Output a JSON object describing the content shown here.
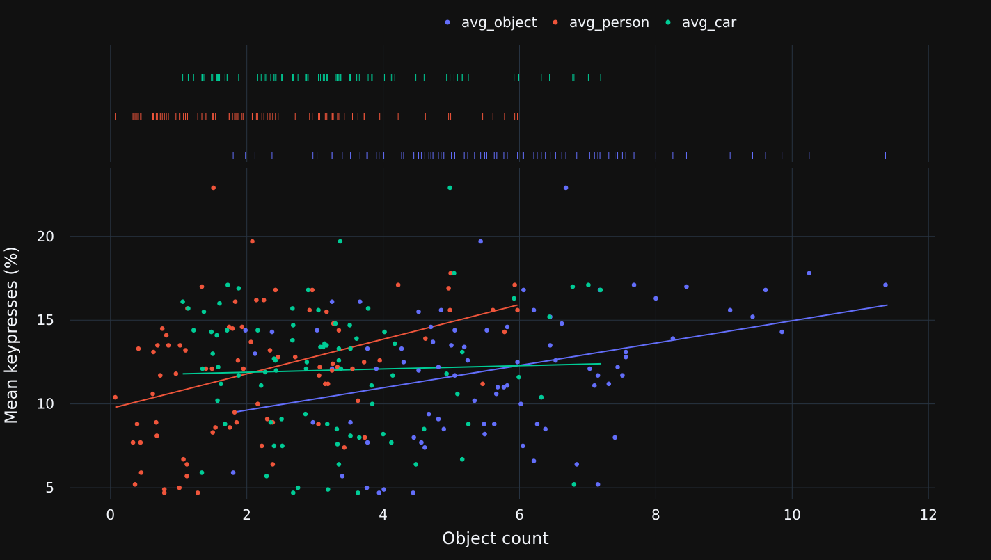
{
  "chart_data": {
    "type": "scatter",
    "xlabel": "Object count",
    "ylabel": "Mean keypresses (%)",
    "xlim": [
      -0.6,
      12.1
    ],
    "ylim": [
      4.3,
      24.1
    ],
    "x_ticks": [
      0,
      2,
      4,
      6,
      8,
      10,
      12
    ],
    "y_ticks": [
      5,
      10,
      15,
      20
    ],
    "grid": true,
    "legend_position": "top-center",
    "marginal": "rug",
    "colors": {
      "background": "#111111",
      "grid": "#283442",
      "text": "#f2f5fa"
    },
    "series": [
      {
        "name": "avg_object",
        "color": "#636efa",
        "trendline": {
          "x": [
            1.8,
            11.4
          ],
          "y": [
            9.5,
            15.9
          ]
        },
        "points": [
          [
            6.68,
            22.9
          ],
          [
            5.43,
            19.7
          ],
          [
            10.25,
            17.8
          ],
          [
            11.37,
            17.1
          ],
          [
            7.68,
            17.1
          ],
          [
            8.45,
            17.0
          ],
          [
            9.61,
            16.8
          ],
          [
            7.18,
            16.8
          ],
          [
            6.06,
            16.8
          ],
          [
            8.0,
            16.3
          ],
          [
            3.25,
            16.1
          ],
          [
            3.66,
            16.1
          ],
          [
            9.09,
            15.6
          ],
          [
            6.21,
            15.6
          ],
          [
            4.52,
            15.5
          ],
          [
            4.85,
            15.6
          ],
          [
            9.42,
            15.2
          ],
          [
            6.45,
            15.2
          ],
          [
            6.62,
            14.8
          ],
          [
            5.82,
            14.6
          ],
          [
            5.52,
            14.4
          ],
          [
            4.7,
            14.6
          ],
          [
            1.98,
            14.4
          ],
          [
            3.03,
            14.4
          ],
          [
            5.05,
            14.4
          ],
          [
            9.85,
            14.3
          ],
          [
            8.25,
            13.9
          ],
          [
            2.37,
            14.3
          ],
          [
            4.73,
            13.7
          ],
          [
            6.45,
            13.5
          ],
          [
            5.19,
            13.4
          ],
          [
            4.27,
            13.3
          ],
          [
            3.77,
            13.3
          ],
          [
            2.12,
            13.0
          ],
          [
            7.56,
            13.1
          ],
          [
            5.0,
            13.5
          ],
          [
            7.56,
            12.8
          ],
          [
            6.53,
            12.6
          ],
          [
            5.24,
            12.6
          ],
          [
            4.3,
            12.5
          ],
          [
            5.97,
            12.5
          ],
          [
            7.44,
            12.2
          ],
          [
            4.81,
            12.2
          ],
          [
            7.03,
            12.1
          ],
          [
            3.25,
            12.1
          ],
          [
            3.9,
            12.1
          ],
          [
            4.52,
            12.0
          ],
          [
            7.15,
            11.7
          ],
          [
            7.51,
            11.7
          ],
          [
            5.05,
            11.7
          ],
          [
            7.31,
            11.2
          ],
          [
            5.82,
            11.1
          ],
          [
            7.1,
            11.1
          ],
          [
            5.68,
            11.0
          ],
          [
            5.77,
            11.0
          ],
          [
            5.66,
            10.6
          ],
          [
            5.34,
            10.2
          ],
          [
            6.32,
            10.4
          ],
          [
            6.02,
            10.0
          ],
          [
            4.67,
            9.4
          ],
          [
            4.81,
            9.1
          ],
          [
            5.48,
            8.8
          ],
          [
            3.52,
            8.9
          ],
          [
            5.63,
            8.8
          ],
          [
            6.26,
            8.8
          ],
          [
            6.38,
            8.5
          ],
          [
            4.89,
            8.5
          ],
          [
            5.49,
            8.2
          ],
          [
            4.45,
            8.0
          ],
          [
            7.4,
            8.0
          ],
          [
            3.77,
            7.7
          ],
          [
            4.56,
            7.7
          ],
          [
            4.61,
            7.4
          ],
          [
            6.05,
            7.5
          ],
          [
            6.21,
            6.6
          ],
          [
            6.84,
            6.4
          ],
          [
            1.8,
            5.9
          ],
          [
            3.4,
            5.7
          ],
          [
            3.76,
            5.0
          ],
          [
            4.01,
            4.9
          ],
          [
            3.94,
            4.7
          ],
          [
            4.44,
            4.7
          ],
          [
            7.15,
            5.2
          ],
          [
            2.97,
            8.9
          ]
        ]
      },
      {
        "name": "avg_person",
        "color": "#ef553b",
        "trendline": {
          "x": [
            0.07,
            5.97
          ],
          "y": [
            9.8,
            15.9
          ]
        },
        "points": [
          [
            1.51,
            22.9
          ],
          [
            2.08,
            19.7
          ],
          [
            4.99,
            17.8
          ],
          [
            5.93,
            17.1
          ],
          [
            4.22,
            17.1
          ],
          [
            1.34,
            17.0
          ],
          [
            2.96,
            16.8
          ],
          [
            4.96,
            16.9
          ],
          [
            2.42,
            16.8
          ],
          [
            2.14,
            16.2
          ],
          [
            1.83,
            16.1
          ],
          [
            2.25,
            16.2
          ],
          [
            1.13,
            15.7
          ],
          [
            2.92,
            15.6
          ],
          [
            3.17,
            15.5
          ],
          [
            4.98,
            15.6
          ],
          [
            5.97,
            15.6
          ],
          [
            5.61,
            15.6
          ],
          [
            3.27,
            14.8
          ],
          [
            0.76,
            14.5
          ],
          [
            1.74,
            14.6
          ],
          [
            1.79,
            14.5
          ],
          [
            1.93,
            14.6
          ],
          [
            3.35,
            14.4
          ],
          [
            4.62,
            13.9
          ],
          [
            0.82,
            14.1
          ],
          [
            5.78,
            14.3
          ],
          [
            0.69,
            13.5
          ],
          [
            0.41,
            13.3
          ],
          [
            1.02,
            13.5
          ],
          [
            2.06,
            13.7
          ],
          [
            2.34,
            13.2
          ],
          [
            0.85,
            13.5
          ],
          [
            1.1,
            13.2
          ],
          [
            0.63,
            13.1
          ],
          [
            1.87,
            12.6
          ],
          [
            2.46,
            12.8
          ],
          [
            2.71,
            12.8
          ],
          [
            3.72,
            12.5
          ],
          [
            3.07,
            12.2
          ],
          [
            3.06,
            11.7
          ],
          [
            3.26,
            12.4
          ],
          [
            3.25,
            12.0
          ],
          [
            3.95,
            12.6
          ],
          [
            3.33,
            12.2
          ],
          [
            3.55,
            12.1
          ],
          [
            1.49,
            12.1
          ],
          [
            1.4,
            12.1
          ],
          [
            1.95,
            12.1
          ],
          [
            0.96,
            11.8
          ],
          [
            0.73,
            11.7
          ],
          [
            3.15,
            11.2
          ],
          [
            3.19,
            11.2
          ],
          [
            5.46,
            11.2
          ],
          [
            0.07,
            10.4
          ],
          [
            0.62,
            10.6
          ],
          [
            2.16,
            10.0
          ],
          [
            3.63,
            10.2
          ],
          [
            1.82,
            9.5
          ],
          [
            1.54,
            8.6
          ],
          [
            1.75,
            8.6
          ],
          [
            1.5,
            8.3
          ],
          [
            2.3,
            9.1
          ],
          [
            2.38,
            8.9
          ],
          [
            3.05,
            8.8
          ],
          [
            0.39,
            8.8
          ],
          [
            0.67,
            8.9
          ],
          [
            0.68,
            8.1
          ],
          [
            3.73,
            8.0
          ],
          [
            0.33,
            7.7
          ],
          [
            0.44,
            7.7
          ],
          [
            2.22,
            7.5
          ],
          [
            3.43,
            7.4
          ],
          [
            1.07,
            6.7
          ],
          [
            1.12,
            6.4
          ],
          [
            2.38,
            6.4
          ],
          [
            0.45,
            5.9
          ],
          [
            1.12,
            5.7
          ],
          [
            0.36,
            5.2
          ],
          [
            1.01,
            5.0
          ],
          [
            0.79,
            4.9
          ],
          [
            0.79,
            4.7
          ],
          [
            1.28,
            4.7
          ],
          [
            1.85,
            8.9
          ]
        ]
      },
      {
        "name": "avg_car",
        "color": "#00cc96",
        "trendline": {
          "x": [
            1.06,
            7.2
          ],
          "y": [
            11.8,
            12.4
          ]
        },
        "points": [
          [
            4.98,
            22.9
          ],
          [
            3.37,
            19.7
          ],
          [
            5.04,
            17.8
          ],
          [
            1.72,
            17.1
          ],
          [
            7.01,
            17.1
          ],
          [
            6.78,
            17.0
          ],
          [
            1.88,
            16.9
          ],
          [
            2.9,
            16.8
          ],
          [
            7.19,
            16.8
          ],
          [
            5.92,
            16.3
          ],
          [
            1.06,
            16.1
          ],
          [
            1.6,
            16.0
          ],
          [
            1.14,
            15.7
          ],
          [
            2.67,
            15.7
          ],
          [
            3.78,
            15.7
          ],
          [
            1.37,
            15.5
          ],
          [
            3.05,
            15.6
          ],
          [
            6.44,
            15.2
          ],
          [
            3.3,
            14.8
          ],
          [
            2.68,
            14.7
          ],
          [
            3.51,
            14.7
          ],
          [
            1.48,
            14.3
          ],
          [
            1.22,
            14.4
          ],
          [
            1.56,
            14.1
          ],
          [
            1.71,
            14.4
          ],
          [
            2.16,
            14.4
          ],
          [
            4.02,
            14.3
          ],
          [
            3.61,
            13.9
          ],
          [
            2.67,
            13.8
          ],
          [
            4.17,
            13.6
          ],
          [
            3.14,
            13.6
          ],
          [
            3.17,
            13.5
          ],
          [
            3.12,
            13.4
          ],
          [
            3.08,
            13.4
          ],
          [
            3.35,
            13.3
          ],
          [
            2.4,
            12.7
          ],
          [
            3.52,
            13.3
          ],
          [
            2.42,
            12.6
          ],
          [
            1.5,
            13.0
          ],
          [
            5.16,
            13.1
          ],
          [
            2.88,
            12.5
          ],
          [
            3.35,
            12.6
          ],
          [
            2.87,
            12.1
          ],
          [
            2.43,
            12.0
          ],
          [
            3.38,
            12.1
          ],
          [
            1.35,
            12.1
          ],
          [
            1.58,
            12.2
          ],
          [
            2.27,
            11.9
          ],
          [
            1.88,
            11.7
          ],
          [
            4.14,
            11.7
          ],
          [
            2.21,
            11.1
          ],
          [
            3.83,
            11.1
          ],
          [
            5.99,
            11.6
          ],
          [
            4.93,
            11.8
          ],
          [
            1.62,
            11.2
          ],
          [
            5.09,
            10.6
          ],
          [
            6.32,
            10.4
          ],
          [
            1.57,
            10.2
          ],
          [
            3.84,
            10.0
          ],
          [
            2.86,
            9.4
          ],
          [
            2.51,
            9.1
          ],
          [
            2.35,
            8.9
          ],
          [
            3.18,
            8.8
          ],
          [
            4.6,
            8.5
          ],
          [
            5.25,
            8.8
          ],
          [
            3.32,
            8.5
          ],
          [
            1.68,
            8.8
          ],
          [
            3.52,
            8.1
          ],
          [
            3.65,
            8.0
          ],
          [
            4.0,
            8.2
          ],
          [
            4.12,
            7.7
          ],
          [
            3.33,
            7.6
          ],
          [
            2.4,
            7.5
          ],
          [
            2.52,
            7.5
          ],
          [
            3.35,
            6.4
          ],
          [
            4.48,
            6.4
          ],
          [
            5.16,
            6.7
          ],
          [
            1.34,
            5.9
          ],
          [
            2.29,
            5.7
          ],
          [
            3.19,
            4.9
          ],
          [
            2.68,
            4.7
          ],
          [
            2.75,
            5.0
          ],
          [
            3.63,
            4.7
          ],
          [
            6.8,
            5.2
          ]
        ]
      }
    ]
  }
}
